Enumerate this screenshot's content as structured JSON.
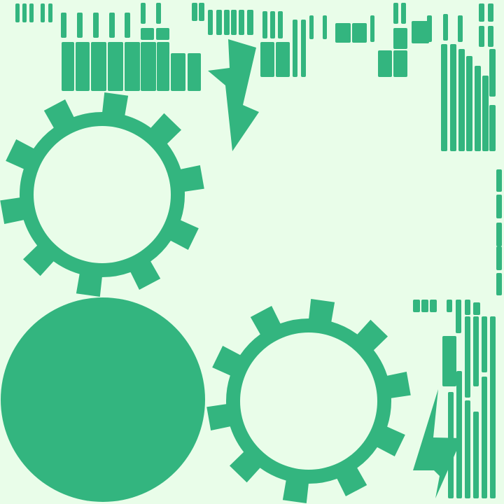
{
  "colors": {
    "background": "#e9fde9",
    "shape": "#33b57f"
  },
  "shapes": [
    {
      "kind": "gear",
      "name": "gear-top-left"
    },
    {
      "kind": "disc",
      "name": "solid-circle"
    },
    {
      "kind": "gear",
      "name": "gear-bottom-middle"
    },
    {
      "kind": "lightning",
      "name": "lightning-bolt-top"
    },
    {
      "kind": "lightning",
      "name": "lightning-bolt-bottom"
    }
  ]
}
